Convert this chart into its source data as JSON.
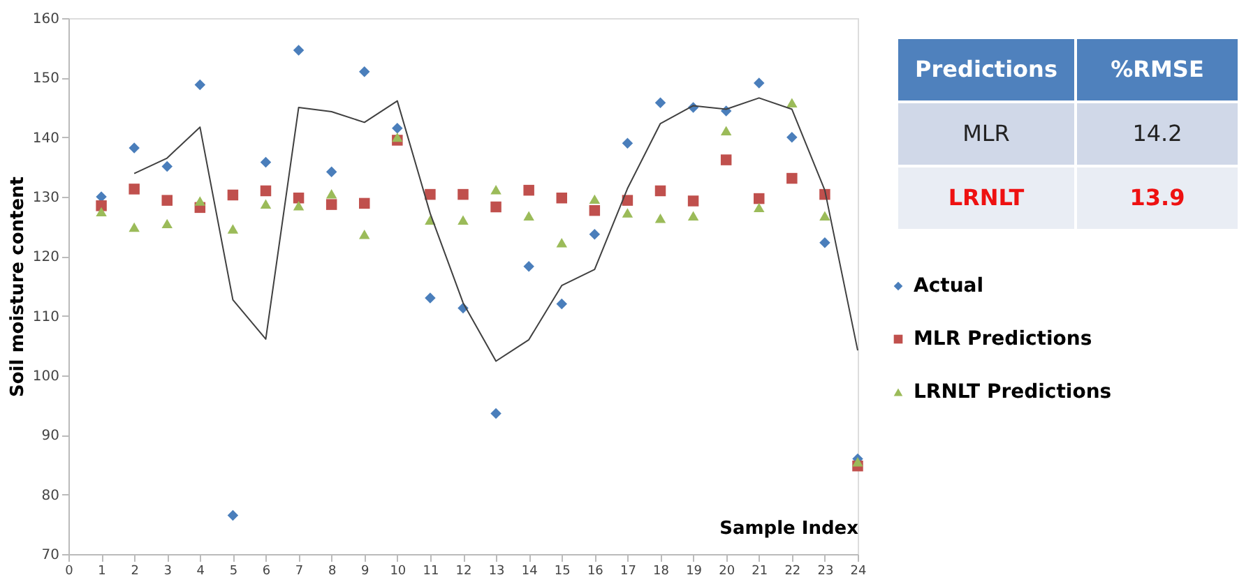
{
  "chart_data": {
    "type": "scatter",
    "xlabel": "Sample Index",
    "ylabel": "Soil moisture content",
    "x": [
      1,
      2,
      3,
      4,
      5,
      6,
      7,
      8,
      9,
      10,
      11,
      12,
      13,
      14,
      15,
      16,
      17,
      18,
      19,
      20,
      21,
      22,
      23,
      24
    ],
    "xlim": [
      0,
      24
    ],
    "xticks": [
      0,
      1,
      2,
      3,
      4,
      5,
      6,
      7,
      8,
      9,
      10,
      11,
      12,
      13,
      14,
      15,
      16,
      17,
      18,
      19,
      20,
      21,
      22,
      23,
      24
    ],
    "ylim": [
      70,
      160
    ],
    "yticks": [
      70,
      80,
      90,
      100,
      110,
      120,
      130,
      140,
      150,
      160
    ],
    "grid": false,
    "legend": "right",
    "series": [
      {
        "name": "Actual",
        "color": "#4a7ebb",
        "marker": "diamond",
        "values": [
          130,
          138.2,
          135.1,
          148.8,
          76.5,
          135.8,
          154.6,
          134.2,
          151.0,
          141.5,
          113.0,
          111.3,
          93.6,
          118.3,
          112.0,
          123.7,
          139.0,
          145.8,
          145.0,
          144.4,
          149.1,
          140.0,
          122.3,
          86.0
        ]
      },
      {
        "name": "MLR Predictions",
        "color": "#c0504d",
        "marker": "square",
        "values": [
          128.5,
          131.3,
          129.4,
          128.2,
          130.3,
          131.0,
          129.8,
          128.7,
          128.9,
          139.5,
          130.4,
          130.4,
          128.3,
          131.1,
          129.8,
          127.7,
          129.4,
          131.0,
          129.3,
          136.2,
          129.7,
          133.1,
          130.4,
          84.8
        ]
      },
      {
        "name": "LRNLT Predictions",
        "color": "#9bbb59",
        "marker": "triangle",
        "values": [
          127.5,
          124.9,
          125.5,
          129.3,
          124.6,
          128.8,
          128.5,
          130.5,
          123.7,
          140.0,
          126.1,
          126.1,
          131.2,
          126.8,
          122.3,
          129.6,
          127.3,
          126.4,
          126.8,
          141.1,
          128.2,
          145.8,
          126.8,
          85.5
        ]
      },
      {
        "type": "line",
        "color": "#404040",
        "marker": "none",
        "x": [
          2,
          3,
          4,
          5,
          6,
          7,
          8,
          9,
          10,
          11,
          12,
          13,
          14,
          15,
          16,
          17,
          18,
          19,
          20,
          21,
          22,
          23,
          24
        ],
        "values": [
          133.9,
          136.5,
          141.7,
          112.7,
          106.1,
          145.0,
          144.3,
          142.5,
          146.1,
          127.2,
          112.2,
          102.4,
          106.0,
          115.1,
          117.8,
          131.4,
          142.3,
          145.3,
          144.7,
          146.6,
          144.7,
          131.1,
          104.2
        ]
      }
    ],
    "annotations": [
      "Predictions",
      "%RMSE",
      "MLR",
      "14.2",
      "LRNLT",
      "13.9"
    ]
  }
}
